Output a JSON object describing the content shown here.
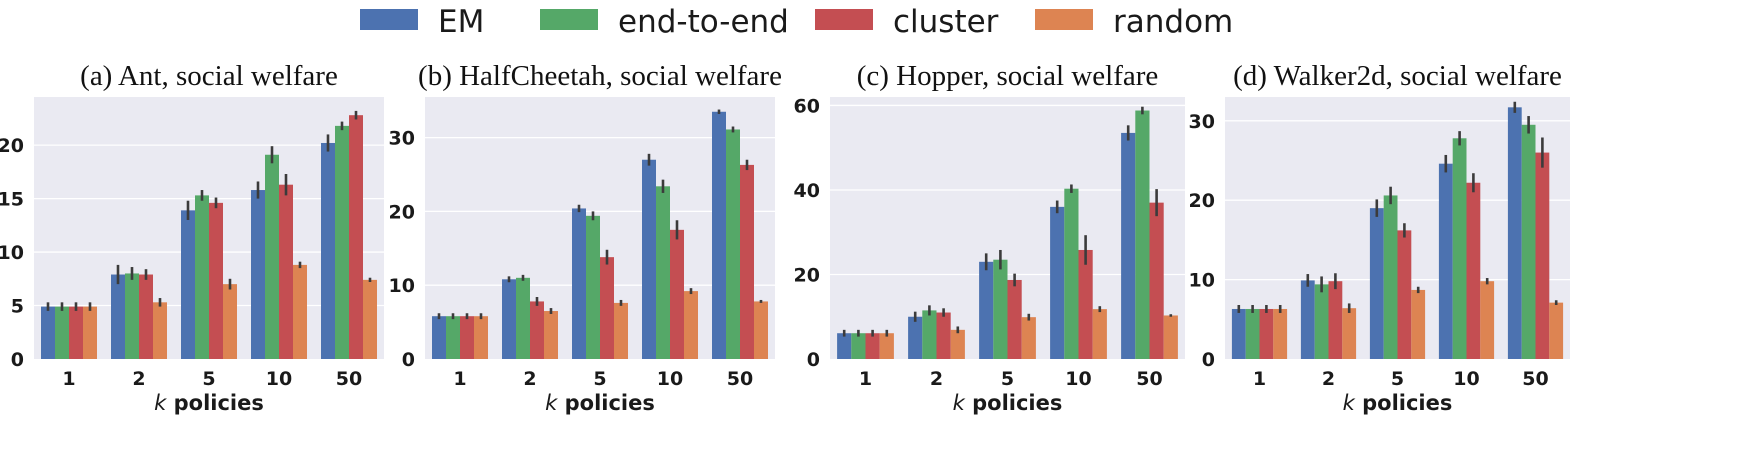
{
  "chart_data": [
    {
      "type": "bar",
      "title": "(a) Ant, social welfare",
      "xlabel_var": "k",
      "xlabel_rest": " policies",
      "categories": [
        "1",
        "2",
        "5",
        "10",
        "50"
      ],
      "ylim": [
        0,
        24.5
      ],
      "yticks": [
        0,
        5,
        10,
        15,
        20
      ],
      "series": [
        {
          "name": "EM",
          "values": [
            4.9,
            7.9,
            13.9,
            15.8,
            20.2
          ],
          "err": [
            0.4,
            0.9,
            0.9,
            0.8,
            0.8
          ]
        },
        {
          "name": "end-to-end",
          "values": [
            4.9,
            8.0,
            15.3,
            19.1,
            21.8
          ],
          "err": [
            0.4,
            0.6,
            0.5,
            0.8,
            0.4
          ]
        },
        {
          "name": "cluster",
          "values": [
            4.9,
            7.9,
            14.6,
            16.3,
            22.8
          ],
          "err": [
            0.4,
            0.5,
            0.5,
            1.0,
            0.4
          ]
        },
        {
          "name": "random",
          "values": [
            4.9,
            5.3,
            7.0,
            8.8,
            7.4
          ],
          "err": [
            0.4,
            0.4,
            0.5,
            0.3,
            0.2
          ]
        }
      ]
    },
    {
      "type": "bar",
      "title": "(b) HalfCheetah, social welfare",
      "xlabel_var": "k",
      "xlabel_rest": " policies",
      "categories": [
        "1",
        "2",
        "5",
        "10",
        "50"
      ],
      "ylim": [
        0,
        35.5
      ],
      "yticks": [
        0,
        10,
        20,
        30
      ],
      "series": [
        {
          "name": "EM",
          "values": [
            5.8,
            10.8,
            20.4,
            27.0,
            33.5
          ],
          "err": [
            0.4,
            0.4,
            0.5,
            0.8,
            0.3
          ]
        },
        {
          "name": "end-to-end",
          "values": [
            5.8,
            11.0,
            19.4,
            23.4,
            31.1
          ],
          "err": [
            0.4,
            0.4,
            0.6,
            0.9,
            0.4
          ]
        },
        {
          "name": "cluster",
          "values": [
            5.8,
            7.8,
            13.8,
            17.5,
            26.3
          ],
          "err": [
            0.4,
            0.6,
            1.0,
            1.3,
            0.7
          ]
        },
        {
          "name": "random",
          "values": [
            5.8,
            6.5,
            7.6,
            9.2,
            7.8
          ],
          "err": [
            0.4,
            0.4,
            0.4,
            0.4,
            0.2
          ]
        }
      ]
    },
    {
      "type": "bar",
      "title": "(c) Hopper, social welfare",
      "xlabel_var": "k",
      "xlabel_rest": " policies",
      "categories": [
        "1",
        "2",
        "5",
        "10",
        "50"
      ],
      "ylim": [
        0,
        62
      ],
      "yticks": [
        0,
        20,
        40,
        60
      ],
      "series": [
        {
          "name": "EM",
          "values": [
            6.1,
            10.0,
            23.0,
            36.0,
            53.5
          ],
          "err": [
            0.8,
            1.2,
            2.0,
            1.5,
            1.8
          ]
        },
        {
          "name": "end-to-end",
          "values": [
            6.1,
            11.5,
            23.5,
            40.3,
            58.8
          ],
          "err": [
            0.8,
            1.2,
            2.3,
            1.0,
            0.9
          ]
        },
        {
          "name": "cluster",
          "values": [
            6.1,
            11.0,
            18.7,
            25.8,
            37.0
          ],
          "err": [
            0.8,
            1.0,
            1.5,
            3.5,
            3.2
          ]
        },
        {
          "name": "random",
          "values": [
            6.1,
            6.9,
            9.9,
            11.8,
            10.3
          ],
          "err": [
            0.8,
            0.8,
            0.8,
            0.7,
            0.3
          ]
        }
      ]
    },
    {
      "type": "bar",
      "title": "(d) Walker2d, social welfare",
      "xlabel_var": "k",
      "xlabel_rest": " policies",
      "categories": [
        "1",
        "2",
        "5",
        "10",
        "50"
      ],
      "ylim": [
        0,
        33
      ],
      "yticks": [
        0,
        10,
        20,
        30
      ],
      "series": [
        {
          "name": "EM",
          "values": [
            6.3,
            9.9,
            19.0,
            24.6,
            31.7
          ],
          "err": [
            0.5,
            0.8,
            1.1,
            1.1,
            0.7
          ]
        },
        {
          "name": "end-to-end",
          "values": [
            6.3,
            9.4,
            20.6,
            27.8,
            29.5
          ],
          "err": [
            0.5,
            1.0,
            1.1,
            0.9,
            1.1
          ]
        },
        {
          "name": "cluster",
          "values": [
            6.3,
            9.8,
            16.2,
            22.2,
            26.0
          ],
          "err": [
            0.5,
            1.0,
            0.9,
            1.2,
            1.9
          ]
        },
        {
          "name": "random",
          "values": [
            6.3,
            6.4,
            8.7,
            9.8,
            7.1
          ],
          "err": [
            0.5,
            0.6,
            0.4,
            0.4,
            0.3
          ]
        }
      ]
    }
  ],
  "legend": [
    {
      "name": "EM",
      "color": "#4c72b0"
    },
    {
      "name": "end-to-end",
      "color": "#55a868"
    },
    {
      "name": "cluster",
      "color": "#c44e52"
    },
    {
      "name": "random",
      "color": "#dd8452"
    }
  ],
  "colors": {
    "plot_bg": "#eaeaf2",
    "grid": "#ffffff",
    "errbar": "#3b3b3b"
  }
}
